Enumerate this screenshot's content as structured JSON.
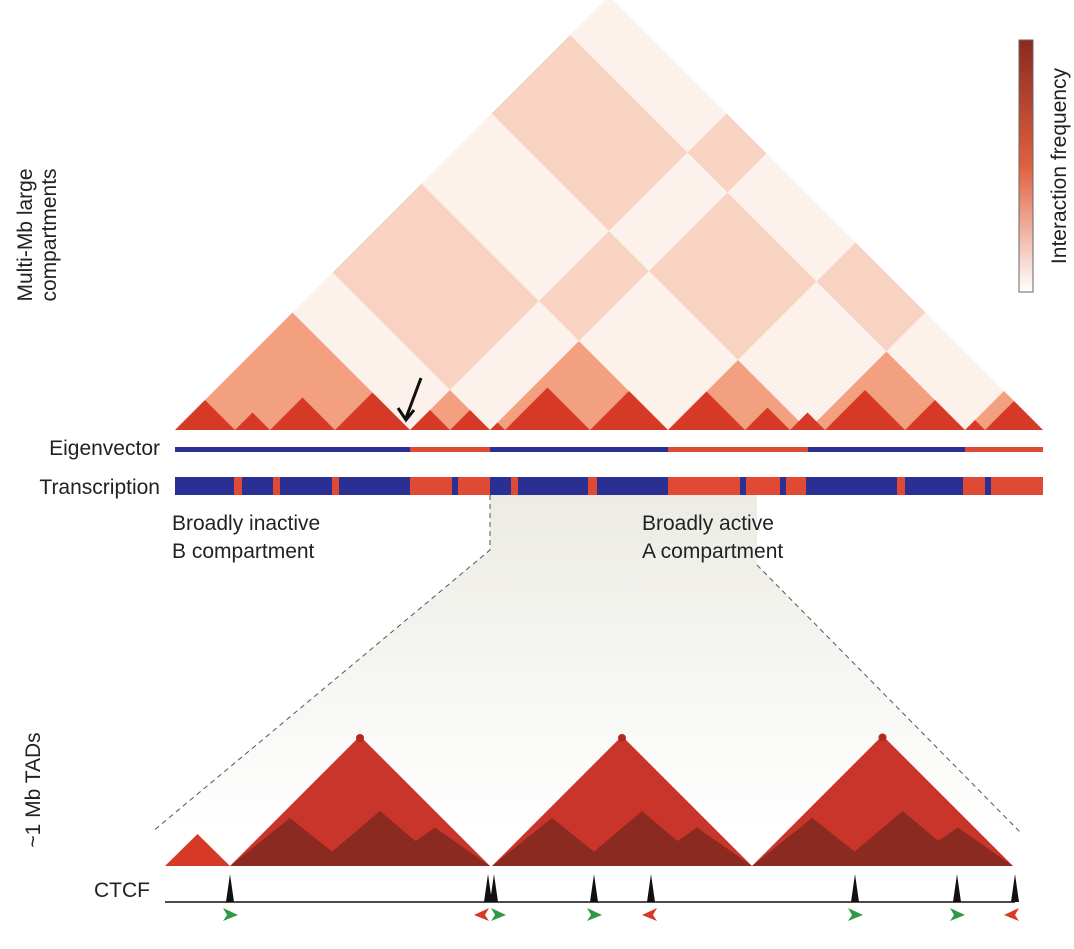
{
  "labels": {
    "compartments": [
      "Multi-Mb large",
      "compartments"
    ],
    "legend": "Interaction frequency",
    "eigenvector": "Eigenvector",
    "transcription": "Transcription",
    "inactive": [
      "Broadly inactive",
      "B compartment"
    ],
    "active": [
      "Broadly active",
      "A compartment"
    ],
    "tads": "~1 Mb TADs",
    "ctcf": "CTCF"
  }
}
